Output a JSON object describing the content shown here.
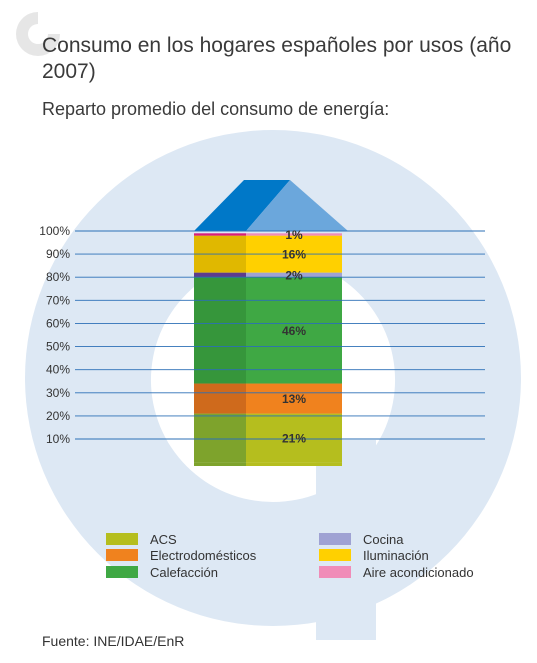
{
  "title": "Consumo en los hogares españoles por usos (año 2007)",
  "subtitle": "Reparto promedio del consumo de energía:",
  "source": "Fuente: INE/IDAE/EnR",
  "colors": {
    "background_shape": "#dde8f4",
    "gridline": "#2b6fb6",
    "roof_dark": "#0078c8",
    "roof_light": "#6ba7dc"
  },
  "chart_data": {
    "type": "bar",
    "subtype": "stacked-100",
    "title": "Consumo en los hogares españoles por usos (año 2007)",
    "subtitle": "Reparto promedio del consumo de energía:",
    "ylim": [
      0,
      100
    ],
    "yticks": [
      "10%",
      "20%",
      "30%",
      "40%",
      "50%",
      "60%",
      "70%",
      "80%",
      "90%",
      "100%"
    ],
    "grid": true,
    "legend_position": "bottom",
    "series": [
      {
        "name": "ACS",
        "value": 21,
        "label": "21%",
        "color": "#b5be1e",
        "shade": "#7ea32c"
      },
      {
        "name": "Electrodomésticos",
        "value": 13,
        "label": "13%",
        "color": "#f0821e",
        "shade": "#cf6a1c"
      },
      {
        "name": "Calefacción",
        "value": 46,
        "label": "46%",
        "color": "#3fa844",
        "shade": "#36963b"
      },
      {
        "name": "Cocina",
        "value": 2,
        "label": "2%",
        "color": "#9fa2d3",
        "shade": "#5d3c8e"
      },
      {
        "name": "Iluminación",
        "value": 16,
        "label": "16%",
        "color": "#ffd000",
        "shade": "#e0b800"
      },
      {
        "name": "Aire acondicionado",
        "value": 1,
        "label": "1%",
        "color": "#f08cb8",
        "shade": "#d81f7a"
      }
    ]
  }
}
